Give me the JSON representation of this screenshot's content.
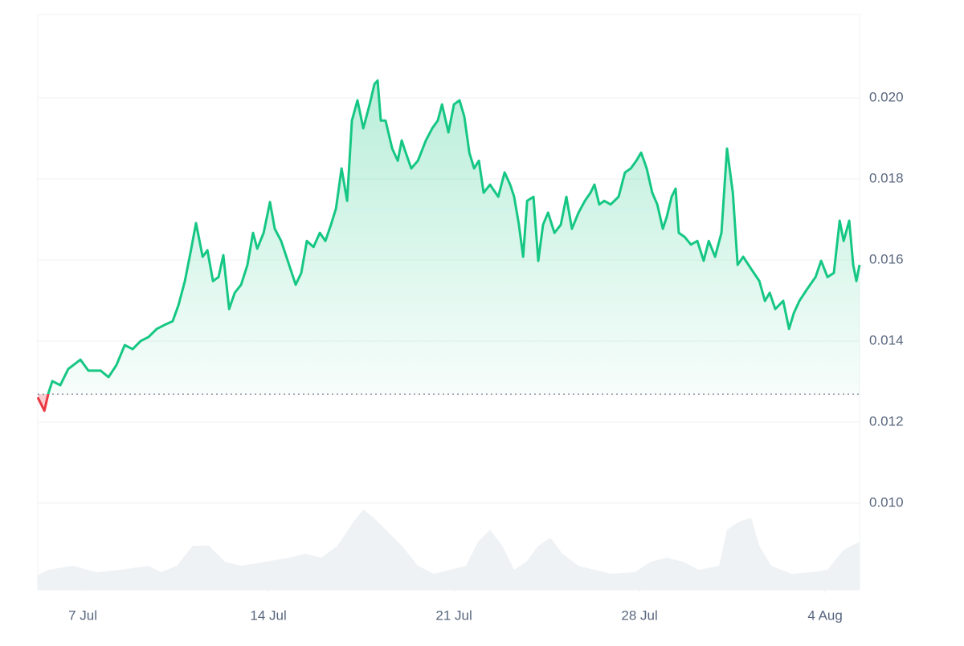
{
  "chart_data": {
    "type": "line",
    "xlim": [
      5.3,
      36.3
    ],
    "xticks": [
      {
        "value": 7,
        "label": "7 Jul"
      },
      {
        "value": 14,
        "label": "14 Jul"
      },
      {
        "value": 21,
        "label": "21 Jul"
      },
      {
        "value": 28,
        "label": "28 Jul"
      },
      {
        "value": 35,
        "label": "4 Aug"
      }
    ],
    "ylim": [
      0.00786,
      0.02206
    ],
    "yticks": [
      {
        "value": 0.01,
        "label": "0.010"
      },
      0.012,
      0.014,
      0.016,
      0.018,
      {
        "value": 0.02,
        "label": "0.020"
      }
    ],
    "y2lim": [
      0,
      100
    ],
    "grid": true,
    "baseline": 0.01269,
    "series": [
      {
        "color": "#16c784",
        "down_color": "#ea3943",
        "x": [
          5.3,
          5.55,
          5.7,
          5.85,
          6.15,
          6.45,
          6.91,
          7.21,
          7.67,
          7.97,
          8.27,
          8.58,
          8.88,
          9.18,
          9.48,
          9.79,
          10.09,
          10.39,
          10.61,
          10.85,
          11.09,
          11.27,
          11.52,
          11.7,
          11.91,
          12.12,
          12.3,
          12.52,
          12.73,
          12.97,
          13.21,
          13.42,
          13.58,
          13.82,
          14.06,
          14.24,
          14.48,
          14.73,
          15.03,
          15.24,
          15.45,
          15.7,
          15.94,
          16.15,
          16.36,
          16.55,
          16.76,
          16.97,
          17.15,
          17.36,
          17.58,
          17.82,
          18.0,
          18.12,
          18.24,
          18.42,
          18.67,
          18.88,
          19.03,
          19.18,
          19.39,
          19.64,
          19.94,
          20.18,
          20.39,
          20.55,
          20.79,
          21.0,
          21.21,
          21.39,
          21.58,
          21.76,
          21.94,
          22.12,
          22.36,
          22.67,
          22.91,
          23.12,
          23.27,
          23.45,
          23.61,
          23.76,
          24.0,
          24.18,
          24.36,
          24.55,
          24.79,
          25.03,
          25.24,
          25.45,
          25.7,
          25.94,
          26.15,
          26.3,
          26.48,
          26.67,
          26.91,
          27.21,
          27.45,
          27.67,
          27.88,
          28.06,
          28.27,
          28.48,
          28.67,
          28.88,
          29.03,
          29.21,
          29.36,
          29.48,
          29.7,
          29.94,
          30.18,
          30.42,
          30.61,
          30.85,
          31.09,
          31.3,
          31.52,
          31.7,
          31.91,
          32.21,
          32.52,
          32.73,
          32.91,
          33.12,
          33.42,
          33.64,
          33.82,
          34.03,
          34.33,
          34.64,
          34.85,
          35.09,
          35.33,
          35.55,
          35.7,
          35.91,
          36.06,
          36.18,
          36.3
        ],
        "values": [
          0.01261,
          0.01228,
          0.01271,
          0.01301,
          0.01291,
          0.01331,
          0.01354,
          0.01327,
          0.01327,
          0.01311,
          0.01341,
          0.0139,
          0.0138,
          0.014,
          0.0141,
          0.0143,
          0.0144,
          0.01449,
          0.01489,
          0.01548,
          0.01628,
          0.01691,
          0.01608,
          0.01624,
          0.01548,
          0.01558,
          0.01612,
          0.01479,
          0.01519,
          0.01539,
          0.01588,
          0.01667,
          0.01628,
          0.01667,
          0.01743,
          0.01677,
          0.01647,
          0.01598,
          0.01539,
          0.01568,
          0.01647,
          0.01632,
          0.01667,
          0.01647,
          0.01687,
          0.01727,
          0.01826,
          0.01746,
          0.01944,
          0.01994,
          0.01925,
          0.01984,
          0.02034,
          0.02043,
          0.01944,
          0.01944,
          0.01875,
          0.01845,
          0.01895,
          0.01865,
          0.01826,
          0.01845,
          0.01895,
          0.01925,
          0.01944,
          0.01984,
          0.01915,
          0.01984,
          0.01994,
          0.01954,
          0.01865,
          0.01826,
          0.01845,
          0.01766,
          0.01786,
          0.01756,
          0.01816,
          0.01786,
          0.01756,
          0.01687,
          0.01608,
          0.01746,
          0.01756,
          0.01598,
          0.01687,
          0.01717,
          0.01667,
          0.01687,
          0.01756,
          0.01677,
          0.01717,
          0.01746,
          0.01766,
          0.01786,
          0.01737,
          0.01746,
          0.01737,
          0.01756,
          0.01816,
          0.01826,
          0.01845,
          0.01865,
          0.01826,
          0.01766,
          0.01737,
          0.01677,
          0.01707,
          0.01756,
          0.01776,
          0.01667,
          0.01657,
          0.01638,
          0.01647,
          0.01598,
          0.01647,
          0.01608,
          0.01667,
          0.01875,
          0.01766,
          0.01588,
          0.01608,
          0.01578,
          0.01548,
          0.01499,
          0.01519,
          0.01479,
          0.01499,
          0.0143,
          0.01469,
          0.01499,
          0.01529,
          0.01558,
          0.01598,
          0.01558,
          0.01568,
          0.01697,
          0.01647,
          0.01697,
          0.01588,
          0.01548,
          0.01588
        ]
      }
    ],
    "volume": {
      "axis": "y2",
      "color": "#eff2f5",
      "x": [
        5.3,
        5.7,
        6.61,
        7.52,
        8.42,
        9.48,
        9.94,
        10.55,
        11.15,
        11.76,
        12.36,
        12.97,
        13.88,
        14.79,
        15.39,
        16.0,
        16.61,
        17.21,
        17.58,
        17.97,
        18.42,
        19.03,
        19.64,
        20.24,
        20.85,
        21.45,
        21.91,
        22.36,
        22.82,
        23.27,
        23.73,
        24.18,
        24.64,
        25.09,
        25.7,
        26.3,
        26.91,
        27.82,
        28.42,
        29.03,
        29.64,
        30.24,
        31.0,
        31.3,
        31.76,
        32.21,
        32.52,
        32.97,
        33.73,
        34.48,
        35.09,
        35.7,
        36.3
      ],
      "values": [
        18,
        25,
        30,
        22,
        25,
        30,
        22,
        30,
        55,
        55,
        35,
        30,
        35,
        40,
        45,
        40,
        55,
        85,
        100,
        90,
        75,
        55,
        30,
        20,
        25,
        30,
        60,
        75,
        55,
        25,
        35,
        55,
        65,
        45,
        30,
        25,
        20,
        22,
        35,
        40,
        35,
        25,
        30,
        75,
        85,
        90,
        55,
        30,
        20,
        22,
        25,
        50,
        60
      ]
    }
  }
}
